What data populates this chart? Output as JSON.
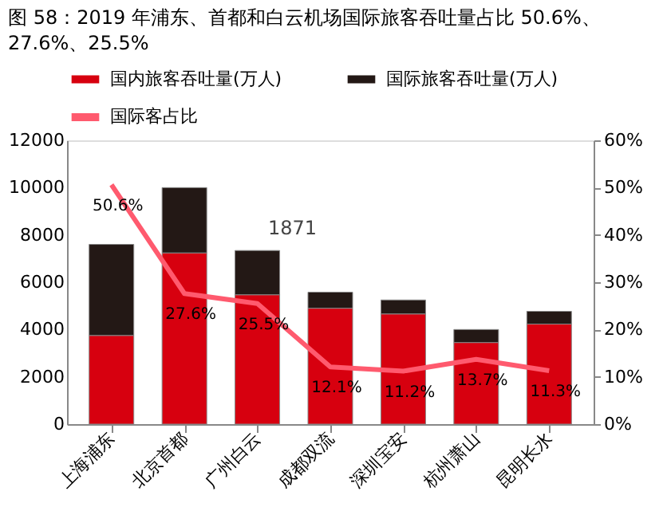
{
  "chart_data": {
    "type": "bar",
    "title": "图 58：2019 年浦东、首都和白云机场国际旅客吞吐量占比 50.6%、27.6%、25.5%",
    "categories": [
      "上海浦东",
      "北京首都",
      "广州白云",
      "成都双流",
      "深圳宝安",
      "杭州萧山",
      "昆明长水"
    ],
    "stacked": true,
    "series": [
      {
        "name": "国内旅客吞吐量(万人)",
        "color": "#d7000f",
        "values": [
          3750,
          7240,
          5470,
          4900,
          4660,
          3450,
          4230
        ]
      },
      {
        "name": "国际旅客吞吐量(万人)",
        "color": "#231815",
        "values": [
          3850,
          2760,
          1871,
          680,
          590,
          550,
          540
        ],
        "value_labels": [
          null,
          null,
          "1871",
          null,
          null,
          null,
          null
        ]
      },
      {
        "name": "国际客占比",
        "type": "line",
        "axis": "y2",
        "color": "#ff5a6e",
        "values": [
          50.6,
          27.6,
          25.5,
          12.1,
          11.2,
          13.7,
          11.3
        ],
        "value_labels": [
          "50.6%",
          "27.6%",
          "25.5%",
          "12.1%",
          "11.2%",
          "13.7%",
          "11.3%"
        ]
      }
    ],
    "ylim": [
      0,
      12000
    ],
    "yticks": [
      0,
      2000,
      4000,
      6000,
      8000,
      10000,
      12000
    ],
    "y2lim": [
      0,
      60
    ],
    "y2ticks": [
      {
        "value": 0,
        "label": "0%"
      },
      {
        "value": 10,
        "label": "10%"
      },
      {
        "value": 20,
        "label": "20%"
      },
      {
        "value": 30,
        "label": "30%"
      },
      {
        "value": 40,
        "label": "40%"
      },
      {
        "value": 50,
        "label": "50%"
      },
      {
        "value": 60,
        "label": "60%"
      }
    ],
    "legend": "top",
    "grid": false
  }
}
